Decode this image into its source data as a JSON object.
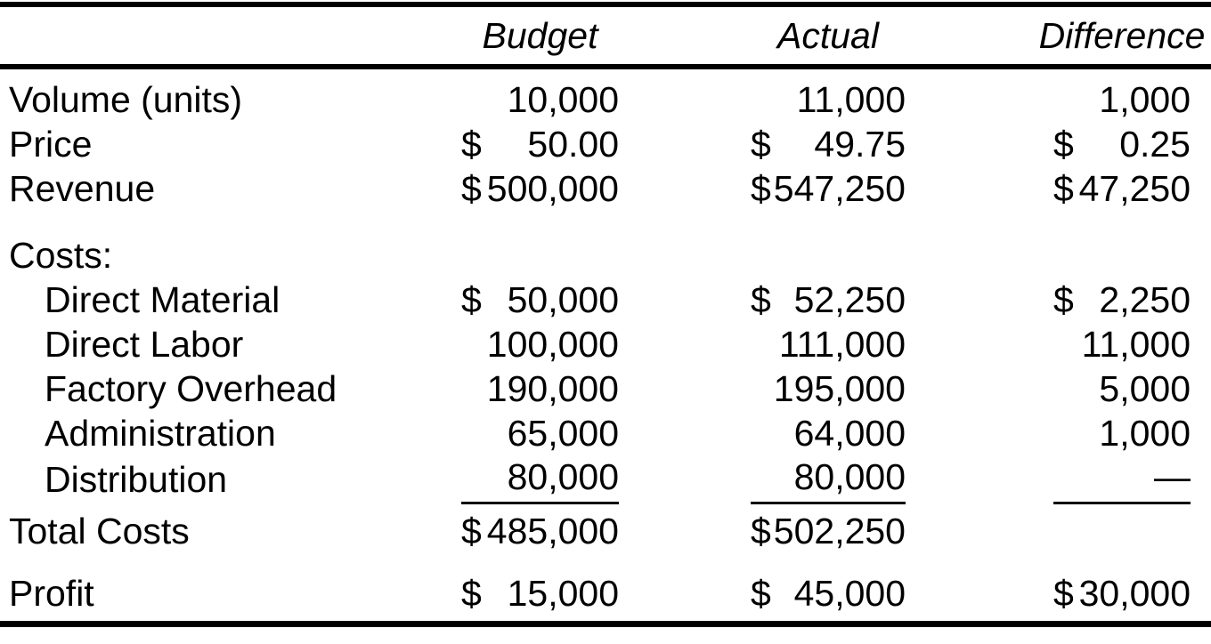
{
  "colors": {
    "ink": "#000000",
    "paper": "#ffffff"
  },
  "table": {
    "columns": [
      {
        "label": "Budget"
      },
      {
        "label": "Actual"
      },
      {
        "label": "Difference"
      }
    ],
    "rows": [
      {
        "id": "volume",
        "label": "Volume (units)",
        "indent": false,
        "underline": false,
        "cells": [
          {
            "dollar": "",
            "amount": "10,000"
          },
          {
            "dollar": "",
            "amount": "11,000"
          },
          {
            "dollar": "",
            "amount": "1,000"
          }
        ]
      },
      {
        "id": "price",
        "label": "Price",
        "indent": false,
        "underline": false,
        "cells": [
          {
            "dollar": "$",
            "amount": "50.00"
          },
          {
            "dollar": "$",
            "amount": "49.75"
          },
          {
            "dollar": "$",
            "amount": "0.25"
          }
        ]
      },
      {
        "id": "revenue",
        "label": "Revenue",
        "indent": false,
        "underline": false,
        "cells": [
          {
            "dollar": "$",
            "amount": "500,000"
          },
          {
            "dollar": "$",
            "amount": "547,250"
          },
          {
            "dollar": "$",
            "amount": "47,250"
          }
        ]
      },
      {
        "id": "costs-header",
        "label": "Costs:",
        "indent": false,
        "underline": false,
        "cells": []
      },
      {
        "id": "direct-material",
        "label": "Direct Material",
        "indent": true,
        "underline": false,
        "cells": [
          {
            "dollar": "$",
            "amount": "50,000"
          },
          {
            "dollar": "$",
            "amount": "52,250"
          },
          {
            "dollar": "$",
            "amount": "2,250"
          }
        ]
      },
      {
        "id": "direct-labor",
        "label": "Direct Labor",
        "indent": true,
        "underline": false,
        "cells": [
          {
            "dollar": "",
            "amount": "100,000"
          },
          {
            "dollar": "",
            "amount": "111,000"
          },
          {
            "dollar": "",
            "amount": "11,000"
          }
        ]
      },
      {
        "id": "factory-overhead",
        "label": "Factory Overhead",
        "indent": true,
        "underline": false,
        "cells": [
          {
            "dollar": "",
            "amount": "190,000"
          },
          {
            "dollar": "",
            "amount": "195,000"
          },
          {
            "dollar": "",
            "amount": "5,000"
          }
        ]
      },
      {
        "id": "administration",
        "label": "Administration",
        "indent": true,
        "underline": false,
        "cells": [
          {
            "dollar": "",
            "amount": "65,000"
          },
          {
            "dollar": "",
            "amount": "64,000"
          },
          {
            "dollar": "",
            "amount": "1,000"
          }
        ]
      },
      {
        "id": "distribution",
        "label": "Distribution",
        "indent": true,
        "underline": true,
        "cells": [
          {
            "dollar": "",
            "amount": "80,000"
          },
          {
            "dollar": "",
            "amount": "80,000"
          },
          {
            "dollar": "",
            "amount": "—"
          }
        ]
      },
      {
        "id": "total-costs",
        "label": "Total Costs",
        "indent": false,
        "underline": false,
        "cells": [
          {
            "dollar": "$",
            "amount": "485,000"
          },
          {
            "dollar": "$",
            "amount": "502,250"
          },
          null
        ]
      },
      {
        "id": "profit",
        "label": "Profit",
        "indent": false,
        "underline": false,
        "cells": [
          {
            "dollar": "$",
            "amount": "15,000"
          },
          {
            "dollar": "$",
            "amount": "45,000"
          },
          {
            "dollar": "$",
            "amount": "30,000"
          }
        ]
      }
    ]
  }
}
